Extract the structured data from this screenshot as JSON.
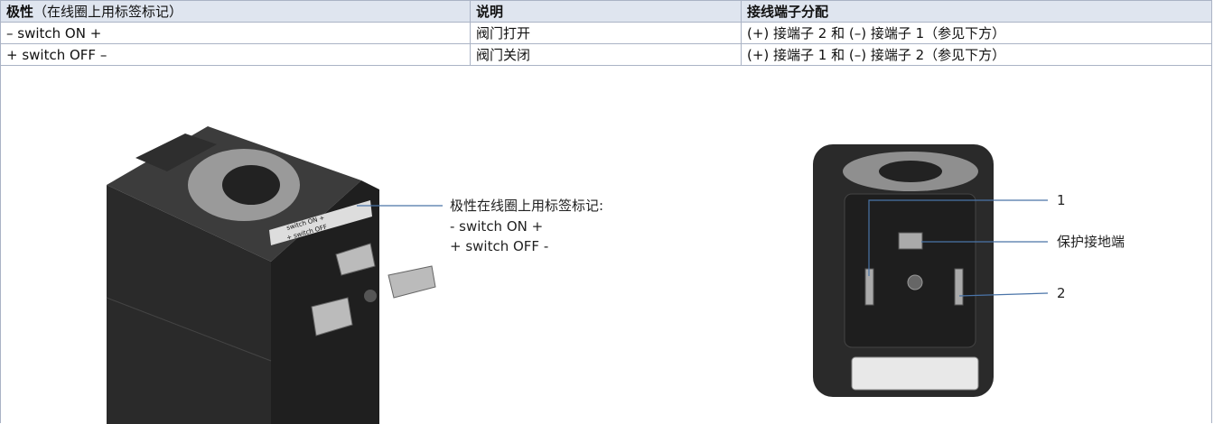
{
  "table": {
    "header": [
      {
        "bold": "极性",
        "note": "（在线圈上用标签标记）"
      },
      "说明",
      "接线端子分配"
    ],
    "rows": [
      [
        "– switch ON +",
        "阀门打开",
        "(+) 接端子 2 和 (–) 接端子 1（参见下方）"
      ],
      [
        "+ switch OFF –",
        "阀门关闭",
        "(+) 接端子 1 和 (–) 接端子 2（参见下方）"
      ]
    ]
  },
  "figure": {
    "coil_label": [
      "switch ON +",
      "+ switch OFF"
    ],
    "left_callout": {
      "title": "极性在线圈上用标签标记:",
      "lines": [
        "- switch ON +",
        "+ switch OFF -"
      ]
    },
    "right_callouts": [
      "1",
      "保护接地端",
      "2"
    ]
  }
}
